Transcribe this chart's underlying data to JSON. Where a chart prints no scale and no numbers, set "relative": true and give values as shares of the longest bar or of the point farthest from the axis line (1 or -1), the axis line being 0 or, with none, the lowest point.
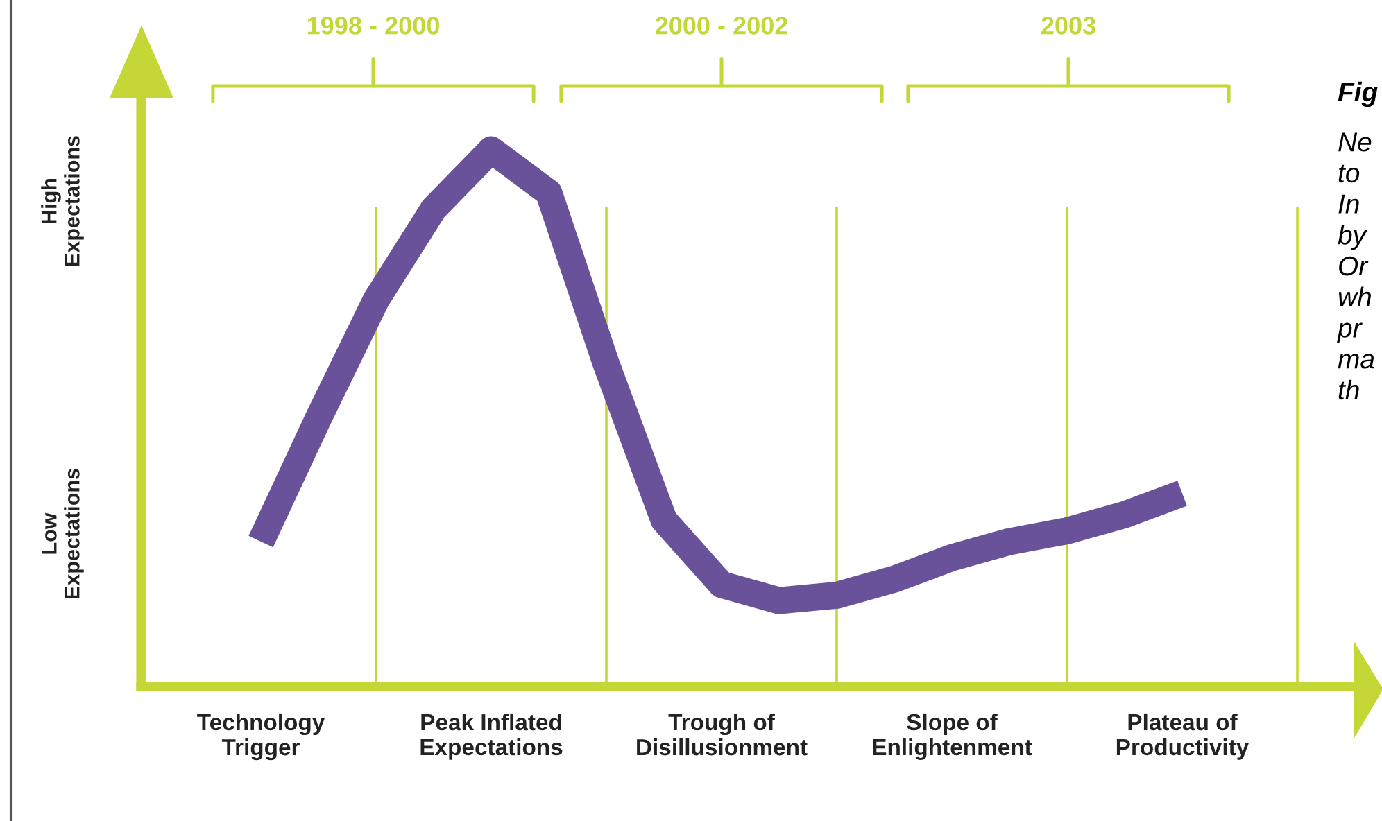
{
  "chart_data": {
    "type": "line",
    "relative": true,
    "categories": [
      "Technology\nTrigger",
      null,
      null,
      null,
      "Peak Inflated\nExpectations",
      null,
      null,
      null,
      "Trough of\nDisillusionment",
      null,
      null,
      null,
      "Slope of\nEnlightenment",
      null,
      null,
      null,
      "Plateau of\nProductivity"
    ],
    "series": [
      {
        "color": "#6a529b",
        "values": [
          0.27,
          0.5,
          0.72,
          0.89,
          1.0,
          0.92,
          0.6,
          0.31,
          0.19,
          0.16,
          0.17,
          0.2,
          0.24,
          0.27,
          0.29,
          0.32,
          0.36
        ]
      }
    ],
    "grid": "x",
    "marker": "none",
    "line_style": "solid",
    "annotations": [
      "1998 - 2000",
      "2000 - 2002",
      "2003",
      "High\nExpectations",
      "Low\nExpectations",
      "Fig",
      "Ne\nto\nIn\nby\nOr\nwh\npr\nma\nth"
    ]
  }
}
